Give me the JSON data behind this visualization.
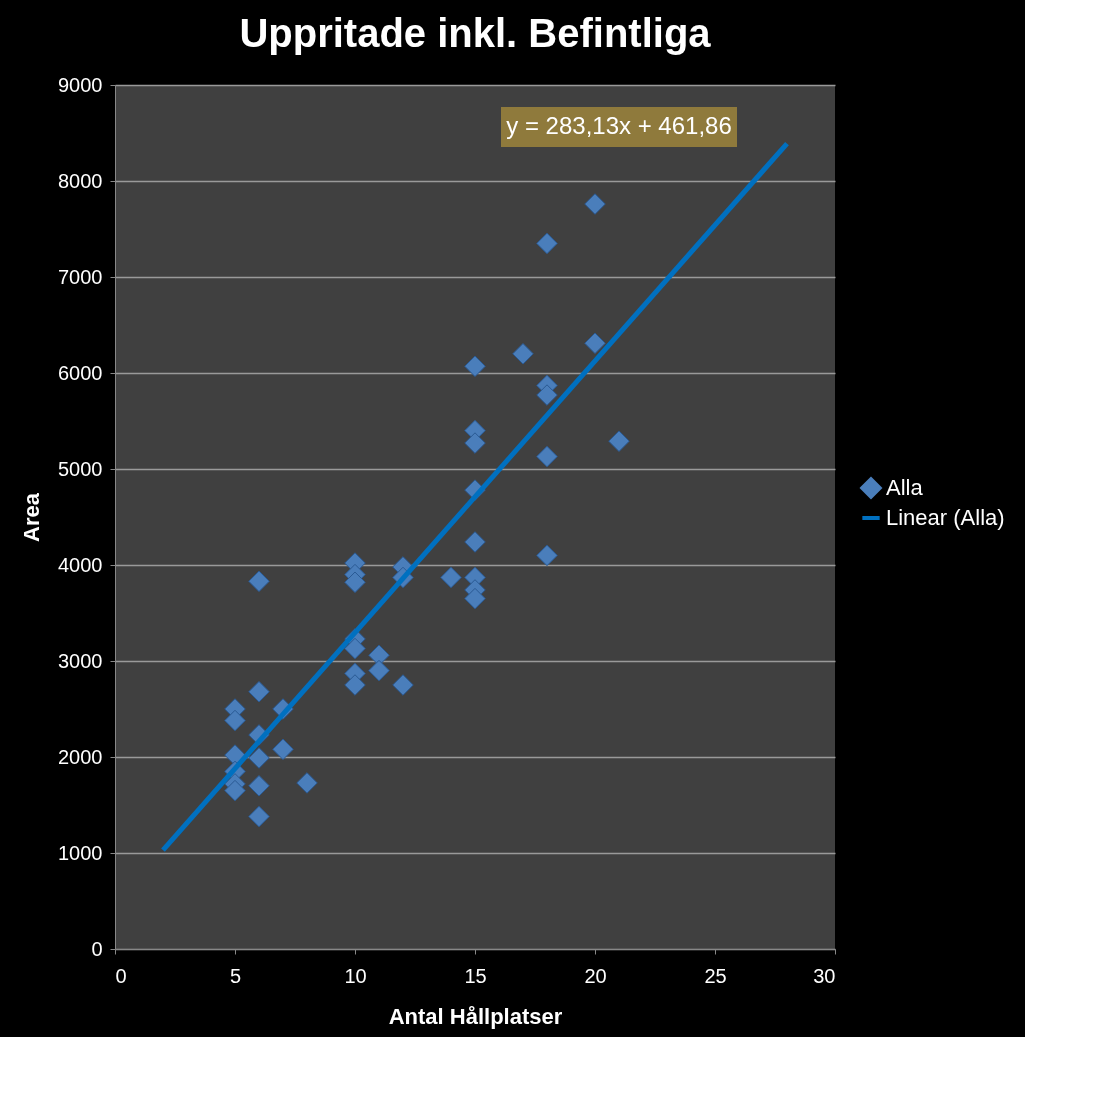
{
  "chart_data": {
    "type": "scatter",
    "title": "Uppritade inkl. Befintliga",
    "xlabel": "Antal Hållplatser",
    "ylabel": "Area",
    "xlim": [
      0,
      30
    ],
    "xticks": [
      0,
      5,
      10,
      15,
      20,
      25,
      30
    ],
    "ylim": [
      0,
      9000
    ],
    "yticks": [
      0,
      1000,
      2000,
      3000,
      4000,
      5000,
      6000,
      7000,
      8000,
      9000
    ],
    "grid": "y",
    "legend": "right",
    "annotations": [
      "y = 283,13x + 461,86"
    ],
    "series": [
      {
        "name": "Alla",
        "marker": "diamond",
        "color": "#4a7ebb",
        "x": [
          5,
          5,
          5,
          5,
          5,
          5,
          6,
          6,
          6,
          6,
          6,
          6,
          7,
          7,
          8,
          10,
          10,
          10,
          10,
          10,
          10,
          10,
          11,
          11,
          12,
          12,
          12,
          14,
          15,
          15,
          15,
          15,
          15,
          15,
          15,
          15,
          17,
          18,
          18,
          18,
          18,
          18,
          20,
          20,
          21
        ],
        "values": [
          2500,
          2380,
          2020,
          1850,
          1720,
          1650,
          3830,
          2680,
          2230,
          1990,
          1700,
          1380,
          2500,
          2080,
          1730,
          4020,
          3900,
          3820,
          3230,
          3130,
          2870,
          2750,
          3060,
          2900,
          3980,
          3870,
          2750,
          3870,
          6070,
          5400,
          5270,
          4780,
          4240,
          3870,
          3740,
          3650,
          6200,
          7350,
          5870,
          5770,
          5130,
          4100,
          7760,
          6310,
          5290
        ]
      },
      {
        "name": "Linear (Alla)",
        "type": "line",
        "marker": "none",
        "color": "#0070c0",
        "line_style": "solid",
        "x": [
          2,
          28
        ],
        "values": [
          1030,
          8390
        ]
      }
    ]
  }
}
